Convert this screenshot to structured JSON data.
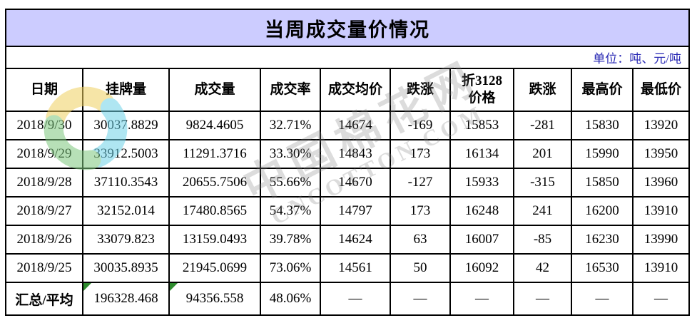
{
  "title": "当周成交量价情况",
  "unit_label": "单位：吨、元/吨",
  "watermark": {
    "text_cn": "中国棉花网",
    "text_en": "CNCOTTON.COM"
  },
  "chart_data": {
    "type": "table",
    "title": "当周成交量价情况",
    "unit": "吨、元/吨",
    "columns": [
      "日期",
      "挂牌量",
      "成交量",
      "成交率",
      "成交均价",
      "跌涨",
      "折3128\n价格",
      "跌涨",
      "最高价",
      "最低价"
    ],
    "rows": [
      [
        "2018/9/30",
        "30037.8829",
        "9824.4605",
        "32.71%",
        "14674",
        "-169",
        "15853",
        "-281",
        "15830",
        "13920"
      ],
      [
        "2018/9/29",
        "33912.5003",
        "11291.3716",
        "33.30%",
        "14843",
        "173",
        "16134",
        "201",
        "15990",
        "13950"
      ],
      [
        "2018/9/28",
        "37110.3543",
        "20655.7506",
        "55.66%",
        "14670",
        "-127",
        "15933",
        "-315",
        "15850",
        "13960"
      ],
      [
        "2018/9/27",
        "32152.014",
        "17480.8565",
        "54.37%",
        "14797",
        "173",
        "16248",
        "241",
        "16200",
        "13910"
      ],
      [
        "2018/9/26",
        "33079.823",
        "13159.0493",
        "39.78%",
        "14624",
        "63",
        "16007",
        "-85",
        "16230",
        "13990"
      ],
      [
        "2018/9/25",
        "30035.8935",
        "21945.0699",
        "73.06%",
        "14561",
        "50",
        "16092",
        "42",
        "16530",
        "13910"
      ]
    ],
    "summary": [
      "汇总/平均",
      "196328.468",
      "94356.558",
      "48.06%",
      "—",
      "—",
      "—",
      "—",
      "—",
      "—"
    ],
    "summary_marker_columns": [
      1,
      2
    ]
  },
  "colors": {
    "title_bg": "#ccccff",
    "unit_text": "#2a2ab4",
    "border": "#000000",
    "error_marker": "#2e8b2e"
  }
}
